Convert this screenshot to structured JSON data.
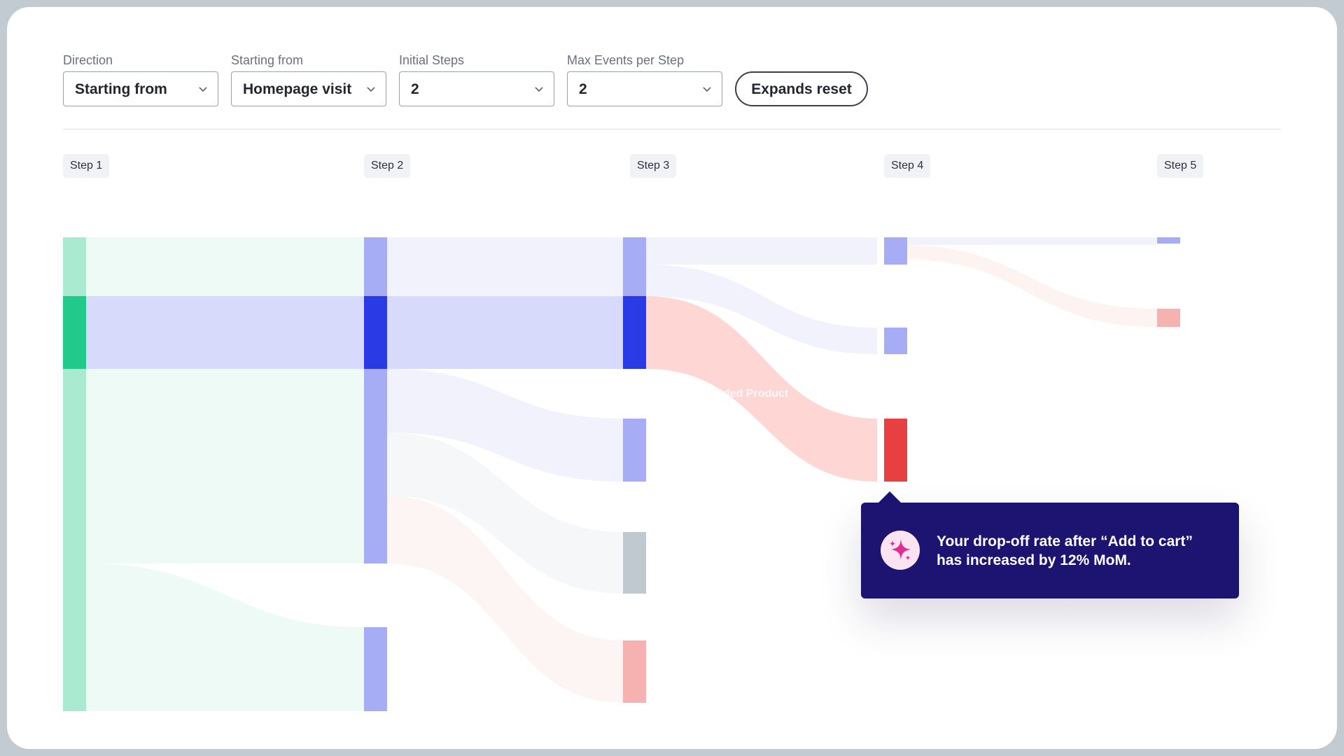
{
  "controls": {
    "direction": {
      "label": "Direction",
      "value": "Starting from"
    },
    "starting_from": {
      "label": "Starting from",
      "value": "Homepage visit"
    },
    "initial_steps": {
      "label": "Initial Steps",
      "value": "2"
    },
    "max_events": {
      "label": "Max Events per Step",
      "value": "2"
    },
    "reset_label": "Expands reset"
  },
  "steps": [
    "Step 1",
    "Step 2",
    "Step 3",
    "Step 4",
    "Step 5"
  ],
  "flow_label": "mended Product",
  "tooltip": {
    "icon": "sparkle-icon",
    "text": "Your drop-off rate after “Add to cart” has increased by 12% MoM."
  },
  "colors": {
    "green": "#21c98b",
    "green_light": "#a9ead1",
    "blue": "#2a3be6",
    "blue_light": "#a7adf4",
    "red": "#e84040",
    "red_light": "#f6b1b1",
    "gray": "#c1c9d0",
    "tooltip_bg": "#1c1470"
  }
}
